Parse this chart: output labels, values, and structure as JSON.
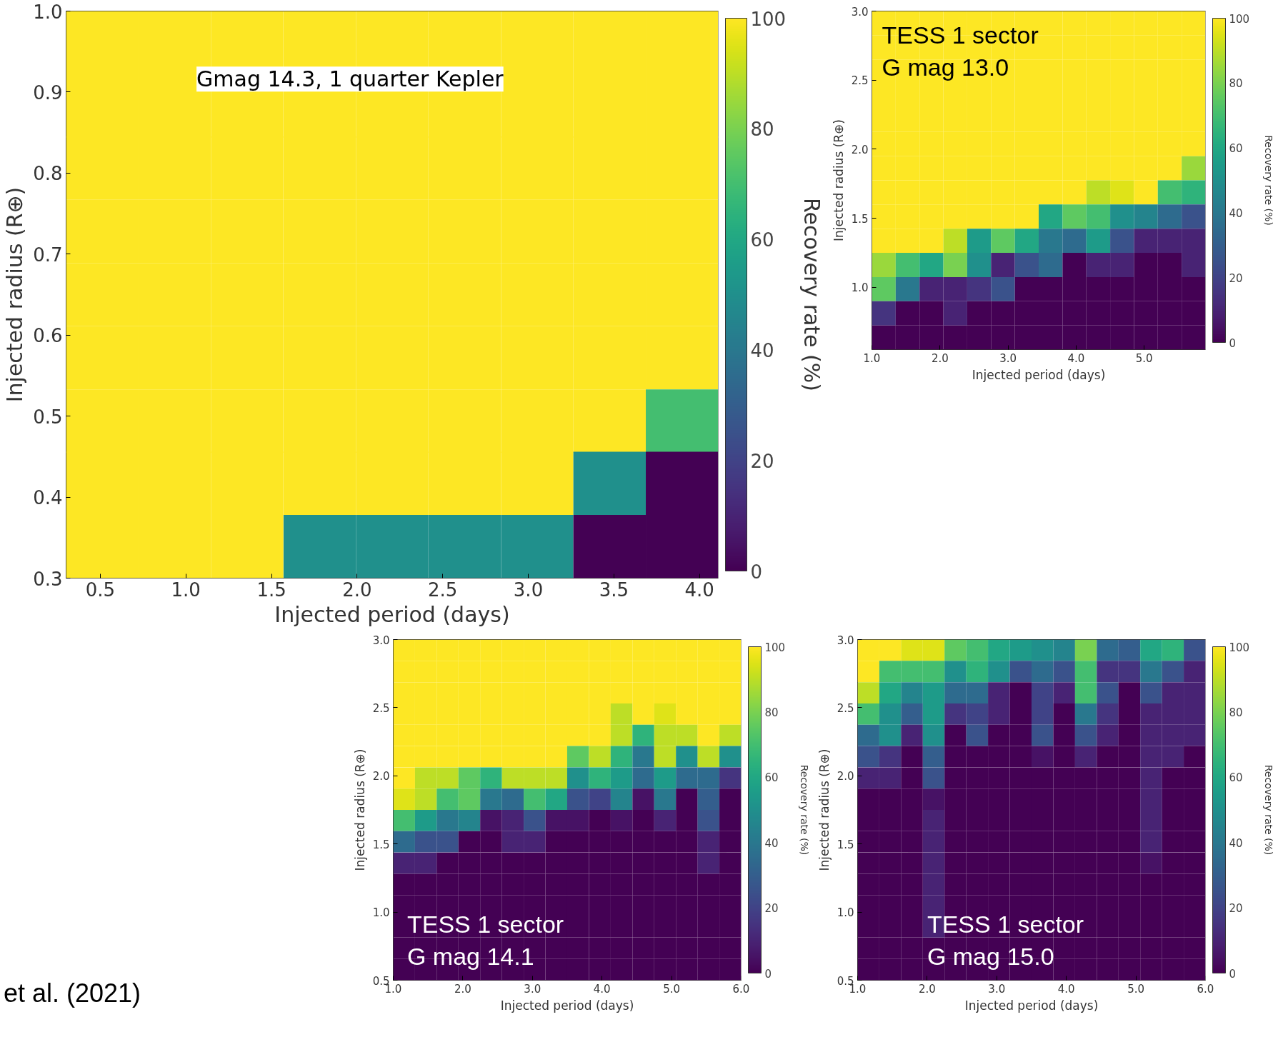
{
  "chart_data": [
    {
      "type": "heatmap",
      "xlabel": "Injected period (days)",
      "ylabel": "Injected radius (R⊕)",
      "clabel": "Recovery rate (%)",
      "annotations": [
        "Gmag 14.3, 1 quarter Kepler",
        "et al. (2021)"
      ],
      "x": [
        0.512,
        0.935,
        1.358,
        1.782,
        2.205,
        2.628,
        3.052,
        3.475,
        3.898
      ],
      "y": [
        0.961,
        0.883,
        0.806,
        0.728,
        0.65,
        0.572,
        0.494,
        0.417,
        0.339
      ],
      "xlim": [
        0.3,
        4.11
      ],
      "ylim": [
        0.3,
        1.0
      ],
      "xticks": [
        0.5,
        {
          "value": 1,
          "label": "1.0"
        },
        1.5,
        {
          "value": 2,
          "label": "2.0"
        },
        2.5,
        {
          "value": 3,
          "label": "3.0"
        },
        3.5,
        {
          "value": 4,
          "label": "4.0"
        }
      ],
      "yticks": [
        0.3,
        0.4,
        0.5,
        0.6,
        0.7,
        0.8,
        0.9,
        {
          "value": 1,
          "label": "1.0"
        }
      ],
      "clim": [
        0,
        100
      ],
      "cticks": [
        0,
        20,
        40,
        60,
        80,
        100
      ],
      "cells": [
        [
          100,
          100,
          100,
          100,
          100,
          100,
          100,
          100,
          100
        ],
        [
          100,
          100,
          100,
          100,
          100,
          100,
          100,
          100,
          100
        ],
        [
          100,
          100,
          100,
          100,
          100,
          100,
          100,
          100,
          100
        ],
        [
          100,
          100,
          100,
          100,
          100,
          100,
          100,
          100,
          100
        ],
        [
          100,
          100,
          100,
          100,
          100,
          100,
          100,
          100,
          100
        ],
        [
          100,
          100,
          100,
          100,
          100,
          100,
          100,
          100,
          100
        ],
        [
          100,
          100,
          100,
          100,
          100,
          100,
          100,
          100,
          70
        ],
        [
          100,
          100,
          100,
          100,
          100,
          100,
          100,
          50,
          0
        ],
        [
          100,
          100,
          100,
          50,
          50,
          50,
          50,
          0,
          0
        ]
      ]
    },
    {
      "type": "heatmap",
      "xlabel": "Injected period (days)",
      "ylabel": "Injected radius (R⊕)",
      "clabel": "Recovery rate (%)",
      "annotations": [
        "TESS 1 sector\nG mag 13.0"
      ],
      "x": [
        1.175,
        1.525,
        1.875,
        2.225,
        2.575,
        2.925,
        3.275,
        3.625,
        3.975,
        4.325,
        4.675,
        5.025,
        5.375,
        5.725
      ],
      "y": [
        2.9125,
        2.7375,
        2.5625,
        2.3875,
        2.2125,
        2.0375,
        1.8625,
        1.6875,
        1.5125,
        1.3375,
        1.1625,
        0.9875,
        0.8125,
        0.6375
      ],
      "xlim": [
        1.0,
        5.9
      ],
      "ylim": [
        0.55,
        3.0
      ],
      "xticks": [
        {
          "value": 1,
          "label": "1.0"
        },
        {
          "value": 2,
          "label": "2.0"
        },
        {
          "value": 3,
          "label": "3.0"
        },
        {
          "value": 4,
          "label": "4.0"
        },
        {
          "value": 5,
          "label": "5.0"
        }
      ],
      "yticks": [
        {
          "value": 1,
          "label": "1.0"
        },
        1.5,
        {
          "value": 2,
          "label": "2.0"
        },
        2.5,
        {
          "value": 3,
          "label": "3.0"
        }
      ],
      "clim": [
        0,
        100
      ],
      "cticks": [
        0,
        20,
        40,
        60,
        80,
        100
      ],
      "cells": [
        [
          100,
          100,
          100,
          100,
          100,
          100,
          100,
          100,
          100,
          100,
          100,
          100,
          100,
          100
        ],
        [
          100,
          100,
          100,
          100,
          100,
          100,
          100,
          100,
          100,
          100,
          100,
          100,
          100,
          100
        ],
        [
          100,
          100,
          100,
          100,
          100,
          100,
          100,
          100,
          100,
          100,
          100,
          100,
          100,
          100
        ],
        [
          100,
          100,
          100,
          100,
          100,
          100,
          100,
          100,
          100,
          100,
          100,
          100,
          100,
          100
        ],
        [
          100,
          100,
          100,
          100,
          100,
          100,
          100,
          100,
          100,
          100,
          100,
          100,
          100,
          100
        ],
        [
          100,
          100,
          100,
          100,
          100,
          100,
          100,
          100,
          100,
          100,
          100,
          100,
          100,
          100
        ],
        [
          100,
          100,
          100,
          100,
          100,
          100,
          100,
          100,
          100,
          100,
          100,
          100,
          100,
          85
        ],
        [
          100,
          100,
          100,
          100,
          100,
          100,
          100,
          100,
          100,
          90,
          95,
          100,
          70,
          65
        ],
        [
          100,
          100,
          100,
          100,
          100,
          100,
          100,
          60,
          75,
          70,
          50,
          45,
          35,
          25
        ],
        [
          100,
          100,
          100,
          90,
          55,
          75,
          60,
          40,
          35,
          55,
          25,
          10,
          10,
          10
        ],
        [
          85,
          70,
          60,
          80,
          50,
          10,
          25,
          35,
          0,
          10,
          10,
          0,
          0,
          10
        ],
        [
          75,
          40,
          10,
          10,
          15,
          25,
          0,
          0,
          0,
          0,
          0,
          0,
          0,
          0
        ],
        [
          15,
          0,
          0,
          10,
          0,
          0,
          0,
          0,
          0,
          0,
          0,
          0,
          0,
          0
        ],
        [
          0,
          0,
          0,
          0,
          0,
          0,
          0,
          0,
          0,
          0,
          0,
          0,
          0,
          0
        ]
      ]
    },
    {
      "type": "heatmap",
      "xlabel": "Injected period (days)",
      "ylabel": "Injected radius (R⊕)",
      "clabel": "Recovery rate (%)",
      "annotations": [
        "TESS 1 sector\nG mag 14.1"
      ],
      "x": [
        1.156,
        1.469,
        1.781,
        2.094,
        2.406,
        2.719,
        3.031,
        3.344,
        3.656,
        3.969,
        4.281,
        4.594,
        4.906,
        5.219,
        5.531,
        5.844
      ],
      "y": [
        2.922,
        2.766,
        2.609,
        2.453,
        2.297,
        2.141,
        1.984,
        1.828,
        1.672,
        1.516,
        1.359,
        1.203,
        1.047,
        0.891,
        0.734,
        0.578
      ],
      "xlim": [
        1.0,
        6.0
      ],
      "ylim": [
        0.5,
        3.0
      ],
      "xticks": [
        {
          "value": 1,
          "label": "1.0"
        },
        {
          "value": 2,
          "label": "2.0"
        },
        {
          "value": 3,
          "label": "3.0"
        },
        {
          "value": 4,
          "label": "4.0"
        },
        {
          "value": 5,
          "label": "5.0"
        },
        {
          "value": 6,
          "label": "6.0"
        }
      ],
      "yticks": [
        0.5,
        {
          "value": 1,
          "label": "1.0"
        },
        1.5,
        {
          "value": 2,
          "label": "2.0"
        },
        2.5,
        {
          "value": 3,
          "label": "3.0"
        }
      ],
      "clim": [
        0,
        100
      ],
      "cticks": [
        0,
        20,
        40,
        60,
        80,
        100
      ],
      "cells": [
        [
          100,
          100,
          100,
          100,
          100,
          100,
          100,
          100,
          100,
          100,
          100,
          100,
          100,
          100,
          100,
          100
        ],
        [
          100,
          100,
          100,
          100,
          100,
          100,
          100,
          100,
          100,
          100,
          100,
          100,
          100,
          100,
          100,
          100
        ],
        [
          100,
          100,
          100,
          100,
          100,
          100,
          100,
          100,
          100,
          100,
          100,
          100,
          100,
          100,
          100,
          100
        ],
        [
          100,
          100,
          100,
          100,
          100,
          100,
          100,
          100,
          100,
          100,
          90,
          100,
          95,
          100,
          100,
          100
        ],
        [
          100,
          100,
          100,
          100,
          100,
          100,
          100,
          100,
          100,
          100,
          90,
          65,
          90,
          90,
          100,
          90
        ],
        [
          100,
          100,
          100,
          100,
          100,
          100,
          100,
          100,
          75,
          90,
          65,
          40,
          90,
          50,
          90,
          50
        ],
        [
          100,
          90,
          90,
          75,
          65,
          90,
          90,
          90,
          50,
          65,
          55,
          35,
          55,
          35,
          35,
          15
        ],
        [
          95,
          90,
          70,
          75,
          40,
          35,
          70,
          60,
          25,
          20,
          45,
          5,
          40,
          0,
          30,
          0
        ],
        [
          70,
          55,
          40,
          45,
          5,
          10,
          25,
          5,
          5,
          0,
          5,
          0,
          10,
          0,
          25,
          0
        ],
        [
          35,
          25,
          25,
          0,
          0,
          10,
          10,
          0,
          0,
          0,
          0,
          0,
          0,
          0,
          10,
          0
        ],
        [
          10,
          10,
          0,
          0,
          0,
          0,
          0,
          0,
          0,
          0,
          0,
          0,
          0,
          0,
          10,
          0
        ],
        [
          0,
          0,
          0,
          0,
          0,
          0,
          0,
          0,
          0,
          0,
          0,
          0,
          0,
          0,
          0,
          0
        ],
        [
          0,
          0,
          0,
          0,
          0,
          0,
          0,
          0,
          0,
          0,
          0,
          0,
          0,
          0,
          0,
          0
        ],
        [
          0,
          0,
          0,
          0,
          0,
          0,
          0,
          0,
          0,
          0,
          0,
          0,
          0,
          0,
          0,
          0
        ],
        [
          0,
          0,
          0,
          0,
          0,
          0,
          0,
          0,
          0,
          0,
          0,
          0,
          0,
          0,
          0,
          0
        ],
        [
          0,
          0,
          0,
          0,
          0,
          0,
          0,
          0,
          0,
          0,
          0,
          0,
          0,
          0,
          0,
          0
        ]
      ]
    },
    {
      "type": "heatmap",
      "xlabel": "Injected period (days)",
      "ylabel": "Injected radius (R⊕)",
      "clabel": "Recovery rate (%)",
      "annotations": [
        "TESS 1 sector\nG mag 15.0"
      ],
      "x": [
        1.156,
        1.469,
        1.781,
        2.094,
        2.406,
        2.719,
        3.031,
        3.344,
        3.656,
        3.969,
        4.281,
        4.594,
        4.906,
        5.219,
        5.531,
        5.844
      ],
      "y": [
        2.922,
        2.766,
        2.609,
        2.453,
        2.297,
        2.141,
        1.984,
        1.828,
        1.672,
        1.516,
        1.359,
        1.203,
        1.047,
        0.891,
        0.734,
        0.578
      ],
      "xlim": [
        1.0,
        6.0
      ],
      "ylim": [
        0.5,
        3.0
      ],
      "xticks": [
        {
          "value": 1,
          "label": "1.0"
        },
        {
          "value": 2,
          "label": "2.0"
        },
        {
          "value": 3,
          "label": "3.0"
        },
        {
          "value": 4,
          "label": "4.0"
        },
        {
          "value": 5,
          "label": "5.0"
        },
        {
          "value": 6,
          "label": "6.0"
        }
      ],
      "yticks": [
        0.5,
        {
          "value": 1,
          "label": "1.0"
        },
        1.5,
        {
          "value": 2,
          "label": "2.0"
        },
        2.5,
        {
          "value": 3,
          "label": "3.0"
        }
      ],
      "clim": [
        0,
        100
      ],
      "cticks": [
        0,
        20,
        40,
        60,
        80,
        100
      ],
      "cells": [
        [
          100,
          100,
          95,
          95,
          75,
          70,
          60,
          55,
          50,
          45,
          80,
          35,
          30,
          60,
          65,
          25
        ],
        [
          100,
          70,
          70,
          70,
          50,
          65,
          50,
          25,
          35,
          25,
          70,
          15,
          15,
          40,
          25,
          10
        ],
        [
          90,
          60,
          45,
          55,
          35,
          35,
          10,
          0,
          20,
          10,
          70,
          25,
          0,
          25,
          10,
          10
        ],
        [
          70,
          50,
          30,
          55,
          15,
          20,
          10,
          0,
          20,
          0,
          40,
          15,
          0,
          10,
          10,
          10
        ],
        [
          35,
          50,
          10,
          50,
          0,
          25,
          0,
          0,
          25,
          0,
          25,
          10,
          0,
          10,
          10,
          10
        ],
        [
          25,
          15,
          0,
          30,
          0,
          0,
          0,
          0,
          5,
          0,
          10,
          0,
          0,
          10,
          10,
          0
        ],
        [
          10,
          10,
          0,
          25,
          0,
          0,
          0,
          0,
          0,
          0,
          0,
          0,
          0,
          10,
          0,
          0
        ],
        [
          0,
          0,
          0,
          5,
          0,
          0,
          0,
          0,
          0,
          0,
          0,
          0,
          0,
          10,
          0,
          0
        ],
        [
          0,
          0,
          0,
          10,
          0,
          0,
          0,
          0,
          0,
          0,
          0,
          0,
          0,
          10,
          0,
          0
        ],
        [
          0,
          0,
          0,
          10,
          0,
          0,
          0,
          0,
          0,
          0,
          0,
          0,
          0,
          10,
          0,
          0
        ],
        [
          0,
          0,
          0,
          10,
          0,
          0,
          0,
          0,
          0,
          0,
          0,
          0,
          0,
          5,
          0,
          0
        ],
        [
          0,
          0,
          0,
          10,
          0,
          0,
          0,
          0,
          0,
          0,
          0,
          0,
          0,
          0,
          0,
          0
        ],
        [
          0,
          0,
          0,
          10,
          0,
          0,
          0,
          0,
          0,
          0,
          0,
          0,
          0,
          0,
          0,
          0
        ],
        [
          0,
          0,
          0,
          10,
          0,
          0,
          0,
          0,
          0,
          0,
          0,
          0,
          0,
          0,
          0,
          0
        ],
        [
          0,
          0,
          0,
          0,
          0,
          0,
          0,
          0,
          0,
          0,
          0,
          0,
          0,
          0,
          0,
          0
        ],
        [
          0,
          0,
          0,
          0,
          0,
          0,
          0,
          0,
          0,
          0,
          0,
          0,
          0,
          0,
          0,
          0
        ]
      ]
    }
  ]
}
